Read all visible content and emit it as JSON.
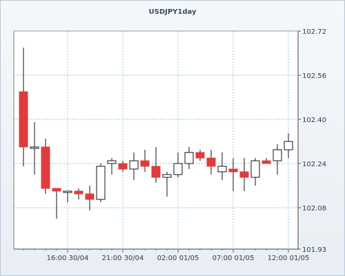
{
  "chart_data": {
    "type": "candlestick",
    "title": "USDJPY1day",
    "x_ticks": [
      "16:00 30/04",
      "21:00 30/04",
      "02:00 01/05",
      "07:00 01/05",
      "12:00 01/05"
    ],
    "y_ticks": [
      "102.72",
      "102.56",
      "102.40",
      "102.24",
      "102.08",
      "101.93"
    ],
    "ylim": [
      101.93,
      102.72
    ],
    "grid": true,
    "colors": {
      "up": "#ffffff",
      "down": "#e03c3c",
      "wick": "#111111",
      "grid": "#8cc8d8"
    },
    "candles": [
      {
        "open": 102.5,
        "high": 102.66,
        "low": 102.23,
        "close": 102.3
      },
      {
        "open": 102.3,
        "high": 102.39,
        "low": 102.2,
        "close": 102.3
      },
      {
        "open": 102.3,
        "high": 102.33,
        "low": 102.13,
        "close": 102.15
      },
      {
        "open": 102.15,
        "high": 102.15,
        "low": 102.04,
        "close": 102.14
      },
      {
        "open": 102.14,
        "high": 102.14,
        "low": 102.1,
        "close": 102.14
      },
      {
        "open": 102.14,
        "high": 102.15,
        "low": 102.11,
        "close": 102.13
      },
      {
        "open": 102.13,
        "high": 102.16,
        "low": 102.07,
        "close": 102.11
      },
      {
        "open": 102.11,
        "high": 102.24,
        "low": 102.1,
        "close": 102.23
      },
      {
        "open": 102.24,
        "high": 102.26,
        "low": 102.2,
        "close": 102.25
      },
      {
        "open": 102.24,
        "high": 102.25,
        "low": 102.21,
        "close": 102.22
      },
      {
        "open": 102.22,
        "high": 102.28,
        "low": 102.18,
        "close": 102.25
      },
      {
        "open": 102.25,
        "high": 102.29,
        "low": 102.21,
        "close": 102.23
      },
      {
        "open": 102.23,
        "high": 102.3,
        "low": 102.17,
        "close": 102.19
      },
      {
        "open": 102.19,
        "high": 102.21,
        "low": 102.12,
        "close": 102.2
      },
      {
        "open": 102.2,
        "high": 102.28,
        "low": 102.19,
        "close": 102.24
      },
      {
        "open": 102.24,
        "high": 102.3,
        "low": 102.22,
        "close": 102.28
      },
      {
        "open": 102.28,
        "high": 102.29,
        "low": 102.25,
        "close": 102.26
      },
      {
        "open": 102.26,
        "high": 102.29,
        "low": 102.2,
        "close": 102.23
      },
      {
        "open": 102.21,
        "high": 102.28,
        "low": 102.18,
        "close": 102.23
      },
      {
        "open": 102.22,
        "high": 102.26,
        "low": 102.14,
        "close": 102.21
      },
      {
        "open": 102.21,
        "high": 102.26,
        "low": 102.14,
        "close": 102.19
      },
      {
        "open": 102.19,
        "high": 102.26,
        "low": 102.16,
        "close": 102.25
      },
      {
        "open": 102.25,
        "high": 102.26,
        "low": 102.24,
        "close": 102.24
      },
      {
        "open": 102.25,
        "high": 102.31,
        "low": 102.2,
        "close": 102.29
      },
      {
        "open": 102.29,
        "high": 102.35,
        "low": 102.26,
        "close": 102.32
      }
    ]
  }
}
